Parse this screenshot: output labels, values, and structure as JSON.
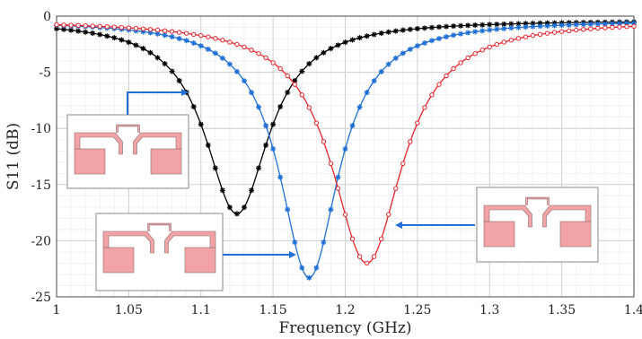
{
  "chart_data": {
    "type": "line",
    "xlabel": "Frequency (GHz)",
    "ylabel": "S11 (dB)",
    "xlim": [
      1,
      1.4
    ],
    "ylim": [
      -25,
      0
    ],
    "x_ticks": [
      1,
      1.05,
      1.1,
      1.15,
      1.2,
      1.25,
      1.3,
      1.35,
      1.4
    ],
    "x_tick_labels": [
      "1",
      "1.05",
      "1.1",
      "1.15",
      "1.2",
      "1.25",
      "1.3",
      "1.35",
      "1.4"
    ],
    "y_ticks": [
      0,
      -5,
      -10,
      -15,
      -20,
      -25
    ],
    "y_tick_labels": [
      "0",
      "-5",
      "-10",
      "-15",
      "-20",
      "-25"
    ],
    "grid": "major and minor",
    "legend": "none",
    "series": [
      {
        "color": "#000000",
        "marker": "star",
        "resonance_ghz": 1.125,
        "min_db": -17.6,
        "halfwidth_ghz": 0.027,
        "baseline_db": -0.35
      },
      {
        "color": "#1f6fd6",
        "marker": "star",
        "resonance_ghz": 1.175,
        "min_db": -23.3,
        "halfwidth_ghz": 0.025,
        "baseline_db": -0.35
      },
      {
        "color": "#e8232a",
        "marker": "circle",
        "resonance_ghz": 1.215,
        "min_db": -22.0,
        "halfwidth_ghz": 0.03,
        "baseline_db": -0.35
      }
    ],
    "insets": [
      {
        "name": "antenna-inset-black",
        "series_index": 0
      },
      {
        "name": "antenna-inset-blue",
        "series_index": 1
      },
      {
        "name": "antenna-inset-red",
        "series_index": 2
      }
    ],
    "colors": {
      "inset_fill": "#f2a3a6",
      "inset_stroke": "#8a6a6a",
      "arrow": "#1f6fd6",
      "grid_major": "#cfcfcf",
      "grid_minor": "#ececec"
    }
  }
}
